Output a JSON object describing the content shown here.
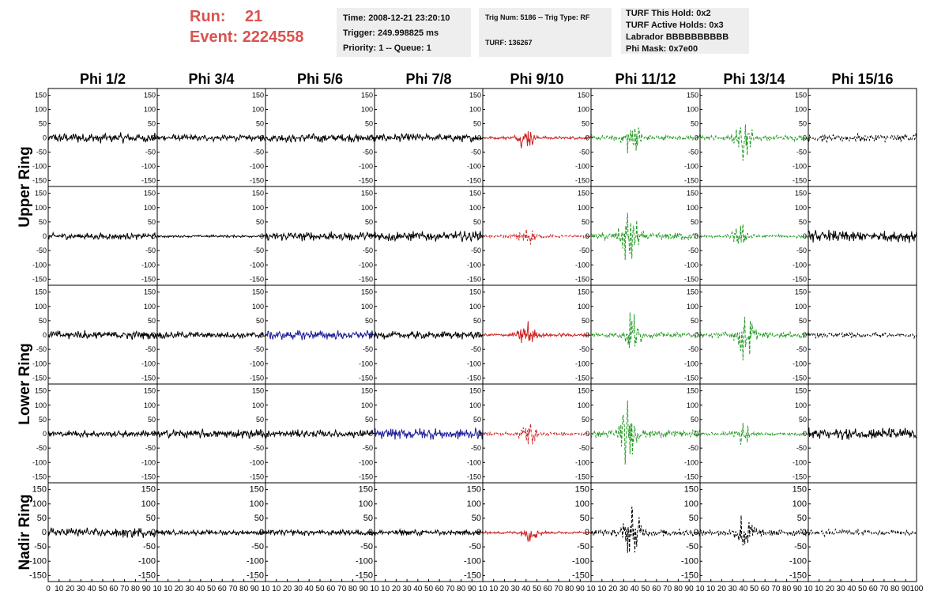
{
  "header": {
    "run_label": "Run:",
    "run_value": "21",
    "event_label": "Event:",
    "event_value": "2224558",
    "box1": [
      "Time: 2008-12-21 23:20:10",
      "Trigger: 249.998825 ms",
      "Priority: 1 -- Queue: 1"
    ],
    "box2": [
      "Trig Num: 5186 -- Trig Type: RF",
      "",
      "TURF: 136267"
    ],
    "box3": [
      "TURF This Hold: 0x2",
      "TURF Active Holds: 0x3",
      "Labrador BBBBBBBBBB",
      "Phi Mask: 0x7e00"
    ]
  },
  "chart_data": {
    "type": "line",
    "columns": [
      "Phi 1/2",
      "Phi 3/4",
      "Phi 5/6",
      "Phi 7/8",
      "Phi 9/10",
      "Phi 11/12",
      "Phi 13/14",
      "Phi 15/16"
    ],
    "rows": [
      "Upper Ring",
      "Upper Ring",
      "Lower Ring",
      "Lower Ring",
      "Nadir Ring"
    ],
    "row_group_labels": [
      {
        "label": "Upper Ring",
        "rows": [
          0,
          1
        ]
      },
      {
        "label": "Lower Ring",
        "rows": [
          2,
          3
        ]
      },
      {
        "label": "Nadir Ring",
        "rows": [
          4
        ]
      }
    ],
    "ylim": [
      -160,
      160
    ],
    "xlim": [
      0,
      100
    ],
    "y_ticks": [
      -150,
      -100,
      -50,
      0,
      50,
      100,
      150
    ],
    "x_ticks": [
      0,
      10,
      20,
      30,
      40,
      50,
      60,
      70,
      80,
      90,
      100
    ],
    "x_tick_labels_first": [
      "0",
      "10",
      "20",
      "30",
      "40",
      "50",
      "60",
      "70",
      "80",
      "90",
      "10"
    ],
    "x_tick_labels_mid": [
      "",
      "10",
      "20",
      "30",
      "40",
      "50",
      "60",
      "70",
      "80",
      "90",
      "10"
    ],
    "x_tick_labels_last": [
      "",
      "10",
      "20",
      "30",
      "40",
      "50",
      "60",
      "70",
      "80",
      "90",
      "100"
    ],
    "colors": {
      "black": "#000000",
      "red": "#cc2222",
      "green": "#229922",
      "blue": "#1a1a99"
    },
    "traces": [
      [
        {
          "c": "black",
          "a": 20,
          "p": 0,
          "d": 0
        },
        {
          "c": "black",
          "a": 14,
          "p": 0,
          "d": 0
        },
        {
          "c": "black",
          "a": 18,
          "p": 0,
          "d": 0
        },
        {
          "c": "black",
          "a": 16,
          "p": 0,
          "d": 0
        },
        {
          "c": "red",
          "a": 18,
          "p": 40,
          "d": 0
        },
        {
          "c": "green",
          "a": 30,
          "p": 38,
          "d": 1
        },
        {
          "c": "green",
          "a": 32,
          "p": 40,
          "d": 1
        },
        {
          "c": "black",
          "a": 18,
          "p": 0,
          "d": 2
        }
      ],
      [
        {
          "c": "black",
          "a": 13,
          "p": 0,
          "d": 0
        },
        {
          "c": "black",
          "a": 5,
          "p": 0,
          "d": 0
        },
        {
          "c": "black",
          "a": 18,
          "p": 0,
          "d": 0
        },
        {
          "c": "black",
          "a": 20,
          "p": 0,
          "d": 0
        },
        {
          "c": "red",
          "a": 16,
          "p": 40,
          "d": 1
        },
        {
          "c": "green",
          "a": 45,
          "p": 35,
          "d": 1
        },
        {
          "c": "green",
          "a": 18,
          "p": 38,
          "d": 1
        },
        {
          "c": "black",
          "a": 24,
          "p": 0,
          "d": 0
        }
      ],
      [
        {
          "c": "black",
          "a": 18,
          "p": 0,
          "d": 0
        },
        {
          "c": "black",
          "a": 14,
          "p": 0,
          "d": 0
        },
        {
          "c": "blue",
          "a": 18,
          "p": 0,
          "d": 0
        },
        {
          "c": "black",
          "a": 16,
          "p": 0,
          "d": 0
        },
        {
          "c": "red",
          "a": 20,
          "p": 40,
          "d": 0
        },
        {
          "c": "green",
          "a": 32,
          "p": 38,
          "d": 1
        },
        {
          "c": "green",
          "a": 36,
          "p": 42,
          "d": 1
        },
        {
          "c": "black",
          "a": 12,
          "p": 0,
          "d": 2
        }
      ],
      [
        {
          "c": "black",
          "a": 14,
          "p": 0,
          "d": 0
        },
        {
          "c": "black",
          "a": 18,
          "p": 0,
          "d": 0
        },
        {
          "c": "black",
          "a": 16,
          "p": 0,
          "d": 0
        },
        {
          "c": "blue",
          "a": 22,
          "p": 0,
          "d": 0
        },
        {
          "c": "red",
          "a": 18,
          "p": 42,
          "d": 1
        },
        {
          "c": "green",
          "a": 45,
          "p": 33,
          "d": 1
        },
        {
          "c": "green",
          "a": 18,
          "p": 40,
          "d": 1
        },
        {
          "c": "black",
          "a": 24,
          "p": 0,
          "d": 0
        }
      ],
      [
        {
          "c": "black",
          "a": 20,
          "p": 0,
          "d": 0
        },
        {
          "c": "black",
          "a": 10,
          "p": 0,
          "d": 0
        },
        {
          "c": "black",
          "a": 12,
          "p": 0,
          "d": 0
        },
        {
          "c": "black",
          "a": 12,
          "p": 0,
          "d": 0
        },
        {
          "c": "red",
          "a": 16,
          "p": 45,
          "d": 0
        },
        {
          "c": "black",
          "a": 40,
          "p": 38,
          "d": 1
        },
        {
          "c": "black",
          "a": 40,
          "p": 42,
          "d": 1
        },
        {
          "c": "black",
          "a": 14,
          "p": 0,
          "d": 2
        }
      ]
    ]
  }
}
